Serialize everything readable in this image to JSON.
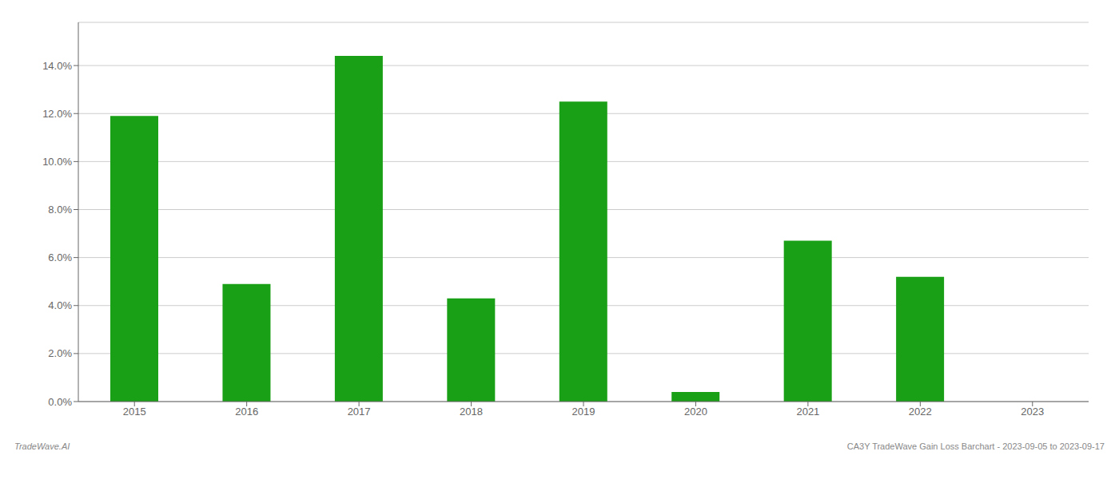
{
  "chart_data": {
    "type": "bar",
    "categories": [
      "2015",
      "2016",
      "2017",
      "2018",
      "2019",
      "2020",
      "2021",
      "2022",
      "2023"
    ],
    "values": [
      0.119,
      0.049,
      0.144,
      0.043,
      0.125,
      0.004,
      0.067,
      0.052,
      0.0
    ],
    "color": "#1aa016",
    "ylim": [
      0,
      0.158
    ],
    "yticks": [
      {
        "value": 0.0,
        "label": "0.0%"
      },
      {
        "value": 0.02,
        "label": "2.0%"
      },
      {
        "value": 0.04,
        "label": "4.0%"
      },
      {
        "value": 0.06,
        "label": "6.0%"
      },
      {
        "value": 0.08,
        "label": "8.0%"
      },
      {
        "value": 0.1,
        "label": "10.0%"
      },
      {
        "value": 0.12,
        "label": "12.0%"
      },
      {
        "value": 0.14,
        "label": "14.0%"
      }
    ],
    "grid": "y",
    "annotations": [
      "TradeWave.AI",
      "CA3Y TradeWave Gain Loss Barchart - 2023-09-05 to 2023-09-17"
    ]
  }
}
